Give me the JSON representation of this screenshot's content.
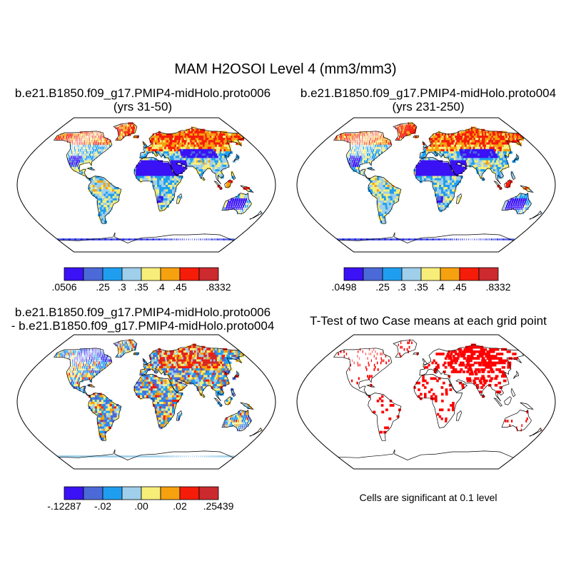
{
  "title": "MAM H2OSOI Level 4 (mm3/mm3)",
  "panels": [
    {
      "id": "p1",
      "title1": "b.e21.B1850.f09_g17.PMIP4-midHolo.proto006",
      "title2": "(yrs 31-50)"
    },
    {
      "id": "p2",
      "title1": "b.e21.B1850.f09_g17.PMIP4-midHolo.proto004",
      "title2": "(yrs 231-250)"
    },
    {
      "id": "p3",
      "title1": "b.e21.B1850.f09_g17.PMIP4-midHolo.proto006",
      "title2": "- b.e21.B1850.f09_g17.PMIP4-midHolo.proto004"
    },
    {
      "id": "p4",
      "title1": "T-Test of two Case means at each grid point"
    }
  ],
  "colors": {
    "abs": [
      "#3a12f5",
      "#4b6ad8",
      "#1f9ef0",
      "#9fcfea",
      "#f7ee7a",
      "#f5a110",
      "#f51c0a",
      "#cc2a2e"
    ],
    "diff": [
      "#3a12f5",
      "#4b6ad8",
      "#1f9ef0",
      "#9fcfea",
      "#f7ee7a",
      "#f5a110",
      "#f51c0a",
      "#cc2a2e"
    ],
    "sig": "#ff0000",
    "ocean": "#ffffff",
    "coast": "#000000"
  },
  "chart_data": [
    {
      "type": "heatmap",
      "panel": "p1",
      "title": "b.e21.B1850.f09_g17.PMIP4-midHolo.proto006 (yrs 31-50)",
      "projection": "Robinson",
      "colorbar_labels": [
        ".0506",
        ".25",
        ".3",
        ".35",
        ".4",
        ".45",
        ".8332"
      ],
      "colorbar_bounds": [
        0.0506,
        0.25,
        0.3,
        0.35,
        0.4,
        0.45,
        0.8332
      ]
    },
    {
      "type": "heatmap",
      "panel": "p2",
      "title": "b.e21.B1850.f09_g17.PMIP4-midHolo.proto004 (yrs 231-250)",
      "projection": "Robinson",
      "colorbar_labels": [
        ".0498",
        ".25",
        ".3",
        ".35",
        ".4",
        ".45",
        ".8332"
      ],
      "colorbar_bounds": [
        0.0498,
        0.25,
        0.3,
        0.35,
        0.4,
        0.45,
        0.8332
      ]
    },
    {
      "type": "heatmap",
      "panel": "p3",
      "title": "proto006 - proto004",
      "projection": "Robinson",
      "colorbar_labels": [
        "-.12287",
        "-.02",
        ".00",
        ".02",
        ".25439"
      ],
      "colorbar_bounds": [
        -0.12287,
        -0.02,
        0.0,
        0.02,
        0.25439
      ]
    },
    {
      "type": "heatmap",
      "panel": "p4",
      "title": "T-Test of two Case means at each grid point",
      "projection": "Robinson",
      "note": "Cells are significant at 0.1 level"
    }
  ]
}
